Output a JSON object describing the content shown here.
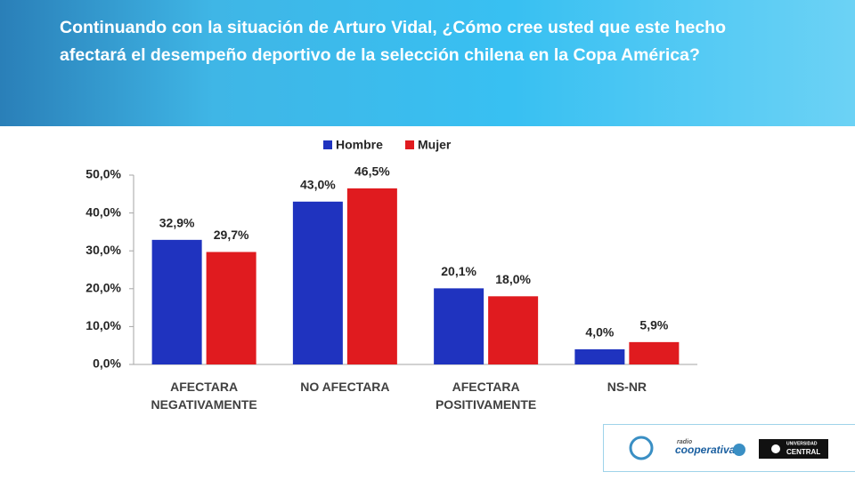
{
  "chart_data": {
    "type": "bar",
    "title": "Continuando con la situación de Arturo Vidal, ¿Cómo cree usted que este hecho afectará el desempeño deportivo de la selección chilena en la Copa América?",
    "categories": [
      "AFECTARA NEGATIVAMENTE",
      "NO AFECTARA",
      "AFECTARA POSITIVAMENTE",
      "NS-NR"
    ],
    "series": [
      {
        "name": "Hombre",
        "color": "#1f33bf",
        "values": [
          32.9,
          43.0,
          20.1,
          4.0
        ],
        "value_labels": [
          "32,9%",
          "43,0%",
          "20,1%",
          "4,0%"
        ]
      },
      {
        "name": "Mujer",
        "color": "#e01b1f",
        "values": [
          29.7,
          46.5,
          18.0,
          5.9
        ],
        "value_labels": [
          "29,7%",
          "46,5%",
          "18,0%",
          "5,9%"
        ]
      }
    ],
    "ylim": [
      0,
      50
    ],
    "yticks": [
      {
        "value": 0,
        "label": "0,0%"
      },
      {
        "value": 10,
        "label": "10,0%"
      },
      {
        "value": 20,
        "label": "20,0%"
      },
      {
        "value": 30,
        "label": "30,0%"
      },
      {
        "value": 40,
        "label": "40,0%"
      },
      {
        "value": 50,
        "label": "50,0%"
      }
    ],
    "grid": false,
    "legend": "top"
  },
  "logos": {
    "radio": "radio",
    "cooperativa": "cooperativa",
    "university": "UNIVERSIDAD",
    "central": "CENTRAL"
  }
}
